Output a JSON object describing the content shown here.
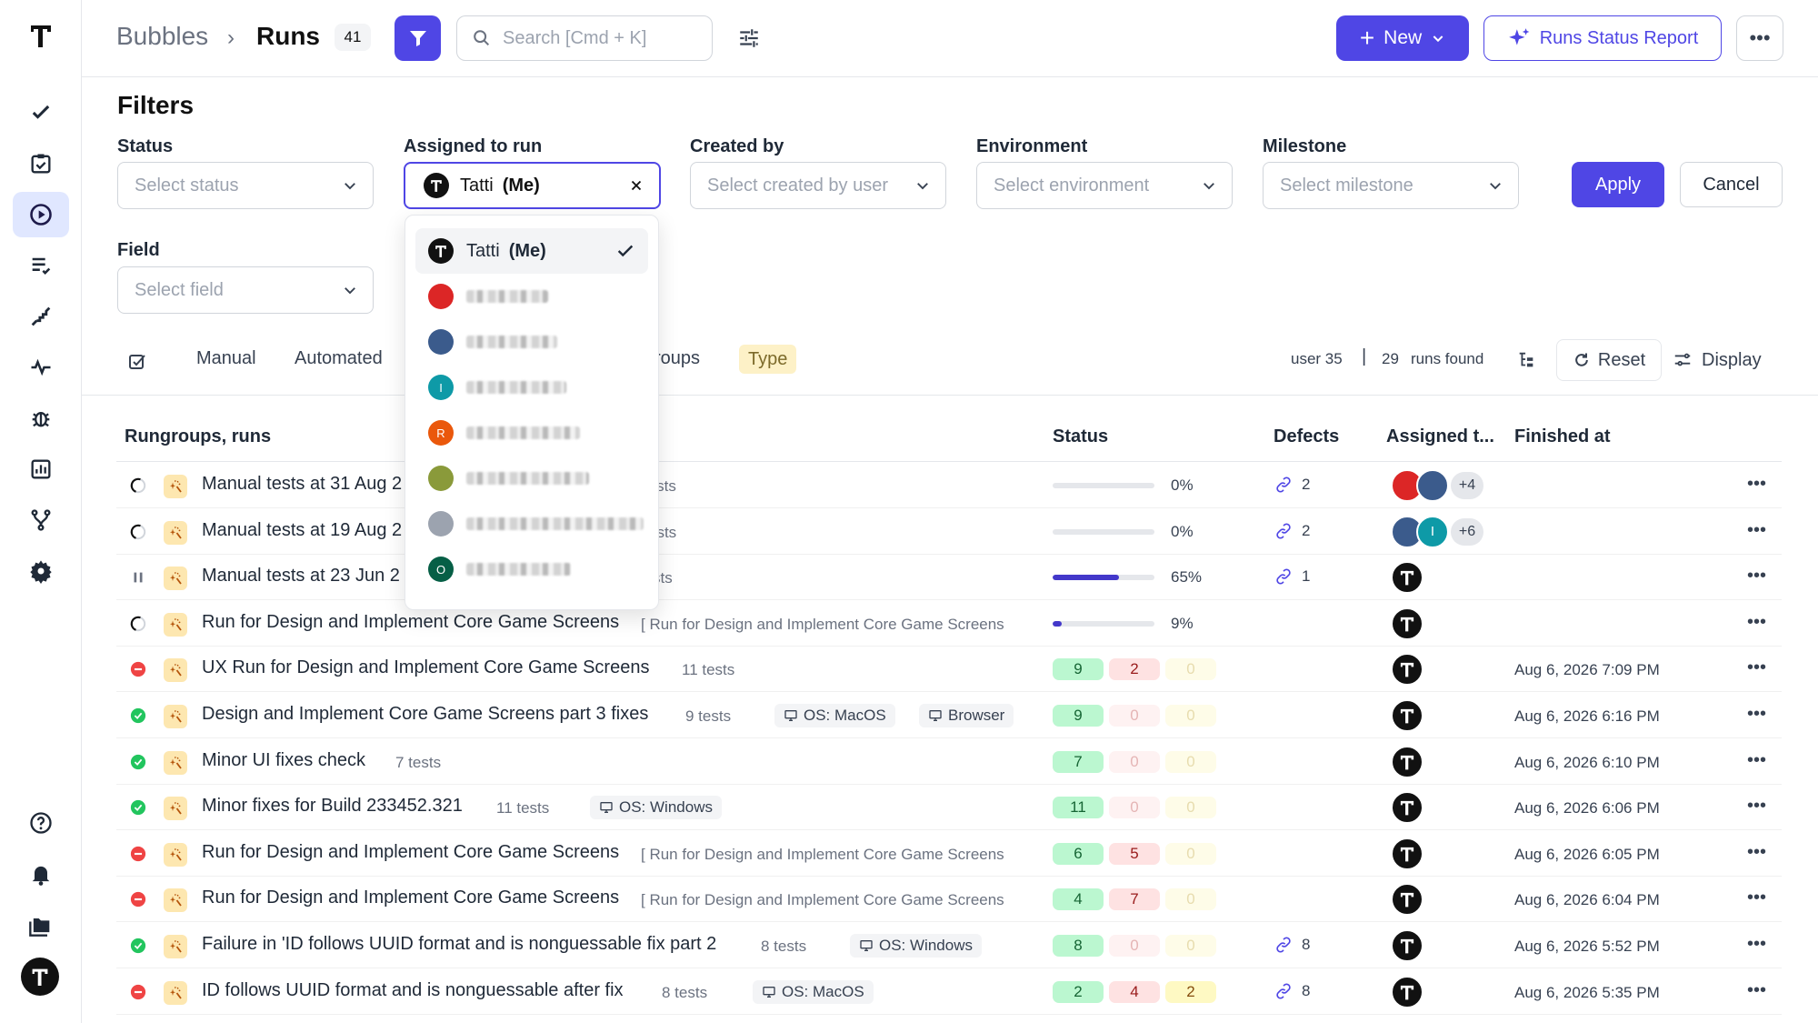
{
  "header": {
    "breadcrumb_root": "Bubbles",
    "breadcrumb_current": "Runs",
    "count": "41",
    "search_placeholder": "Search [Cmd + K]",
    "new_label": "New",
    "report_label": "Runs Status Report"
  },
  "filters": {
    "title": "Filters",
    "status": {
      "label": "Status",
      "placeholder": "Select status"
    },
    "assigned": {
      "label": "Assigned to run",
      "value_name": "Tatti",
      "value_suffix": "(Me)"
    },
    "created_by": {
      "label": "Created by",
      "placeholder": "Select created by user"
    },
    "environment": {
      "label": "Environment",
      "placeholder": "Select environment"
    },
    "milestone": {
      "label": "Milestone",
      "placeholder": "Select milestone"
    },
    "field": {
      "label": "Field",
      "placeholder": "Select field"
    },
    "apply_label": "Apply",
    "cancel_label": "Cancel"
  },
  "dropdown": {
    "selected_name": "Tatti",
    "selected_suffix": "(Me)",
    "others": [
      {
        "initial": "",
        "color": "#dc2626"
      },
      {
        "initial": "",
        "color": "#3b5b8c"
      },
      {
        "initial": "I",
        "color": "#0e9aa7"
      },
      {
        "initial": "R",
        "color": "#ea580c"
      },
      {
        "initial": "",
        "color": "#8a9a3a"
      },
      {
        "initial": "",
        "color": "#9ca3af"
      },
      {
        "initial": "O",
        "color": "#065f46"
      }
    ]
  },
  "tabs": {
    "manual": "Manual",
    "automated": "Automated",
    "groups_partial": "roups",
    "type": "Type"
  },
  "stats": {
    "user": "user 35",
    "separator": "|",
    "runs_count": "29",
    "runs_label": "runs found",
    "reset_label": "Reset",
    "display_label": "Display"
  },
  "table": {
    "headers": {
      "name": "Rungroups, runs",
      "status": "Status",
      "defects": "Defects",
      "assigned": "Assigned t...",
      "finished": "Finished at"
    },
    "rows": [
      {
        "state": "progress",
        "name": "Manual tests at 31 Aug 2",
        "meta": "tests",
        "meta_x": 580,
        "progress": 0,
        "pct": "0%",
        "defects": "2",
        "assignees": [
          "#dc2626",
          "#3b5b8c"
        ],
        "more": "+4",
        "finished": ""
      },
      {
        "state": "progress",
        "name": "Manual tests at 19 Aug 2",
        "meta": "ests",
        "meta_x": 585,
        "progress": 0,
        "pct": "0%",
        "defects": "2",
        "assignees": [
          "#3b5b8c",
          "#0e9aa7"
        ],
        "more": "+6",
        "finished": ""
      },
      {
        "state": "paused",
        "name": "Manual tests at 23 Jun 2",
        "meta": "sts",
        "meta_x": 590,
        "progress": 65,
        "pct": "65%",
        "defects": "1",
        "me": true,
        "finished": ""
      },
      {
        "state": "progress",
        "name": "Run for Design and Implement Core Game Screens",
        "meta": "[  Run for Design and Implement Core Game Screens",
        "meta_x": 577,
        "progress": 9,
        "pct": "9%",
        "defects": "",
        "me": true,
        "finished": ""
      },
      {
        "state": "failed",
        "name": "UX Run for Design and Implement Core Game Screens",
        "meta": "11 tests",
        "meta_x": 622,
        "counts": [
          "9",
          "2",
          "0"
        ],
        "defects": "",
        "me": true,
        "finished": "Aug 6, 2026 7:09 PM"
      },
      {
        "state": "passed",
        "name": "Design and Implement Core Game Screens part 3 fixes",
        "meta": "9 tests",
        "meta_x": 626,
        "counts": [
          "9",
          "0",
          "0"
        ],
        "tags": [
          {
            "text": "OS: MacOS",
            "x": 724
          },
          {
            "text": "Browser",
            "x": 883
          }
        ],
        "defects": "",
        "me": true,
        "finished": "Aug 6, 2026 6:16 PM"
      },
      {
        "state": "passed",
        "name": "Minor UI fixes check",
        "meta": "7 tests",
        "meta_x": 307,
        "counts": [
          "7",
          "0",
          "0"
        ],
        "defects": "",
        "me": true,
        "finished": "Aug 6, 2026 6:10 PM"
      },
      {
        "state": "passed",
        "name": "Minor fixes for Build 233452.321",
        "meta": "11 tests",
        "meta_x": 418,
        "counts": [
          "11",
          "0",
          "0"
        ],
        "tags": [
          {
            "text": "OS: Windows",
            "x": 521
          }
        ],
        "defects": "",
        "me": true,
        "finished": "Aug 6, 2026 6:06 PM"
      },
      {
        "state": "failed",
        "name": "Run for Design and Implement Core Game Screens",
        "meta": "[  Run for Design and Implement Core Game Screens",
        "meta_x": 577,
        "counts": [
          "6",
          "5",
          "0"
        ],
        "defects": "",
        "me": true,
        "finished": "Aug 6, 2026 6:05 PM"
      },
      {
        "state": "failed",
        "name": "Run for Design and Implement Core Game Screens",
        "meta": "[  Run for Design and Implement Core Game Screens",
        "meta_x": 577,
        "counts": [
          "4",
          "7",
          "0"
        ],
        "defects": "",
        "me": true,
        "finished": "Aug 6, 2026 6:04 PM"
      },
      {
        "state": "passed",
        "name": "Failure in 'ID follows UUID format and is nonguessable fix part 2",
        "meta": "8 tests",
        "meta_x": 709,
        "counts": [
          "8",
          "0",
          "0"
        ],
        "tags": [
          {
            "text": "OS: Windows",
            "x": 807
          }
        ],
        "defects": "8",
        "me": true,
        "finished": "Aug 6, 2026 5:52 PM"
      },
      {
        "state": "failed",
        "name": "ID follows UUID format and is nonguessable after fix",
        "meta": "8 tests",
        "meta_x": 600,
        "counts": [
          "2",
          "4",
          "2"
        ],
        "tags": [
          {
            "text": "OS: MacOS",
            "x": 700
          }
        ],
        "defects": "8",
        "me": true,
        "finished": "Aug 6, 2026 5:35 PM"
      }
    ]
  },
  "colors": {
    "accent": "#4f46e5",
    "passed": "#22c55e",
    "failed": "#ef4444"
  }
}
